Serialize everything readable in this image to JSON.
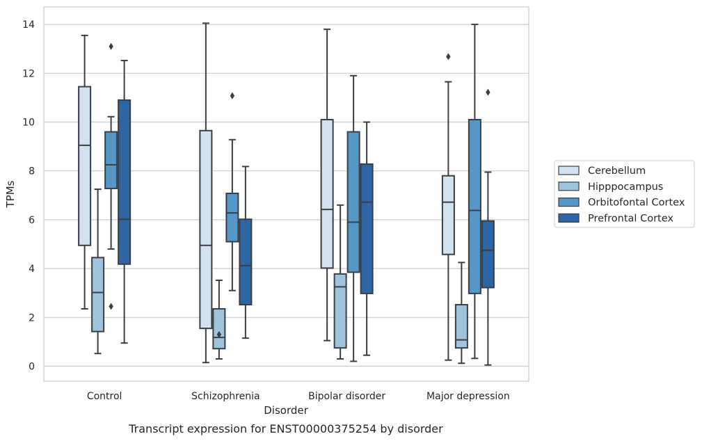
{
  "caption": "Transcript expression for ENST00000375254 by disorder",
  "chart_data": {
    "type": "box",
    "title": "",
    "xlabel": "Disorder",
    "ylabel": "TPMs",
    "ylim": [
      -0.6,
      14.75
    ],
    "yticks": [
      0,
      2,
      4,
      6,
      8,
      10,
      12,
      14
    ],
    "grid": true,
    "legend_position": "right",
    "categories": [
      "Control",
      "Schizophrenia",
      "Bipolar disorder",
      "Major depression"
    ],
    "series": [
      {
        "name": "Cerebellum",
        "color": "#d3e2f0",
        "boxes": [
          {
            "whislo": 2.35,
            "q1": 4.95,
            "med": 9.05,
            "q3": 11.45,
            "whishi": 13.55,
            "fliers": []
          },
          {
            "whislo": 0.15,
            "q1": 1.55,
            "med": 4.95,
            "q3": 9.65,
            "whishi": 14.05,
            "fliers": []
          },
          {
            "whislo": 1.05,
            "q1": 4.02,
            "med": 6.42,
            "q3": 10.1,
            "whishi": 13.8,
            "fliers": []
          },
          {
            "whislo": 0.25,
            "q1": 4.58,
            "med": 6.72,
            "q3": 7.8,
            "whishi": 11.65,
            "fliers": [
              12.68
            ]
          }
        ]
      },
      {
        "name": "Hipppocampus",
        "color": "#9ec3dc",
        "boxes": [
          {
            "whislo": 0.52,
            "q1": 1.42,
            "med": 3.02,
            "q3": 4.45,
            "whishi": 7.25,
            "fliers": []
          },
          {
            "whislo": 0.3,
            "q1": 0.72,
            "med": 1.18,
            "q3": 2.35,
            "whishi": 3.52,
            "fliers": [
              1.3
            ]
          },
          {
            "whislo": 0.3,
            "q1": 0.75,
            "med": 3.25,
            "q3": 3.78,
            "whishi": 6.6,
            "fliers": []
          },
          {
            "whislo": 0.12,
            "q1": 0.75,
            "med": 1.08,
            "q3": 2.52,
            "whishi": 4.25,
            "fliers": []
          }
        ]
      },
      {
        "name": "Orbitofontal Cortex",
        "color": "#5597c7",
        "boxes": [
          {
            "whislo": 4.8,
            "q1": 7.28,
            "med": 8.25,
            "q3": 9.6,
            "whishi": 10.22,
            "fliers": [
              13.1,
              2.45
            ]
          },
          {
            "whislo": 3.1,
            "q1": 5.1,
            "med": 6.28,
            "q3": 7.08,
            "whishi": 9.28,
            "fliers": [
              11.08
            ]
          },
          {
            "whislo": 0.2,
            "q1": 3.85,
            "med": 5.9,
            "q3": 9.6,
            "whishi": 11.9,
            "fliers": []
          },
          {
            "whislo": 0.32,
            "q1": 2.98,
            "med": 6.38,
            "q3": 10.1,
            "whishi": 14.0,
            "fliers": []
          }
        ]
      },
      {
        "name": "Prefrontal Cortex",
        "color": "#2d66a2",
        "boxes": [
          {
            "whislo": 0.95,
            "q1": 4.18,
            "med": 6.02,
            "q3": 10.9,
            "whishi": 12.52,
            "fliers": []
          },
          {
            "whislo": 1.15,
            "q1": 2.52,
            "med": 4.12,
            "q3": 6.02,
            "whishi": 8.18,
            "fliers": []
          },
          {
            "whislo": 0.45,
            "q1": 2.98,
            "med": 6.72,
            "q3": 8.28,
            "whishi": 10.0,
            "fliers": []
          },
          {
            "whislo": 0.05,
            "q1": 3.22,
            "med": 4.75,
            "q3": 5.95,
            "whishi": 7.95,
            "fliers": [
              11.22
            ]
          }
        ]
      }
    ]
  }
}
